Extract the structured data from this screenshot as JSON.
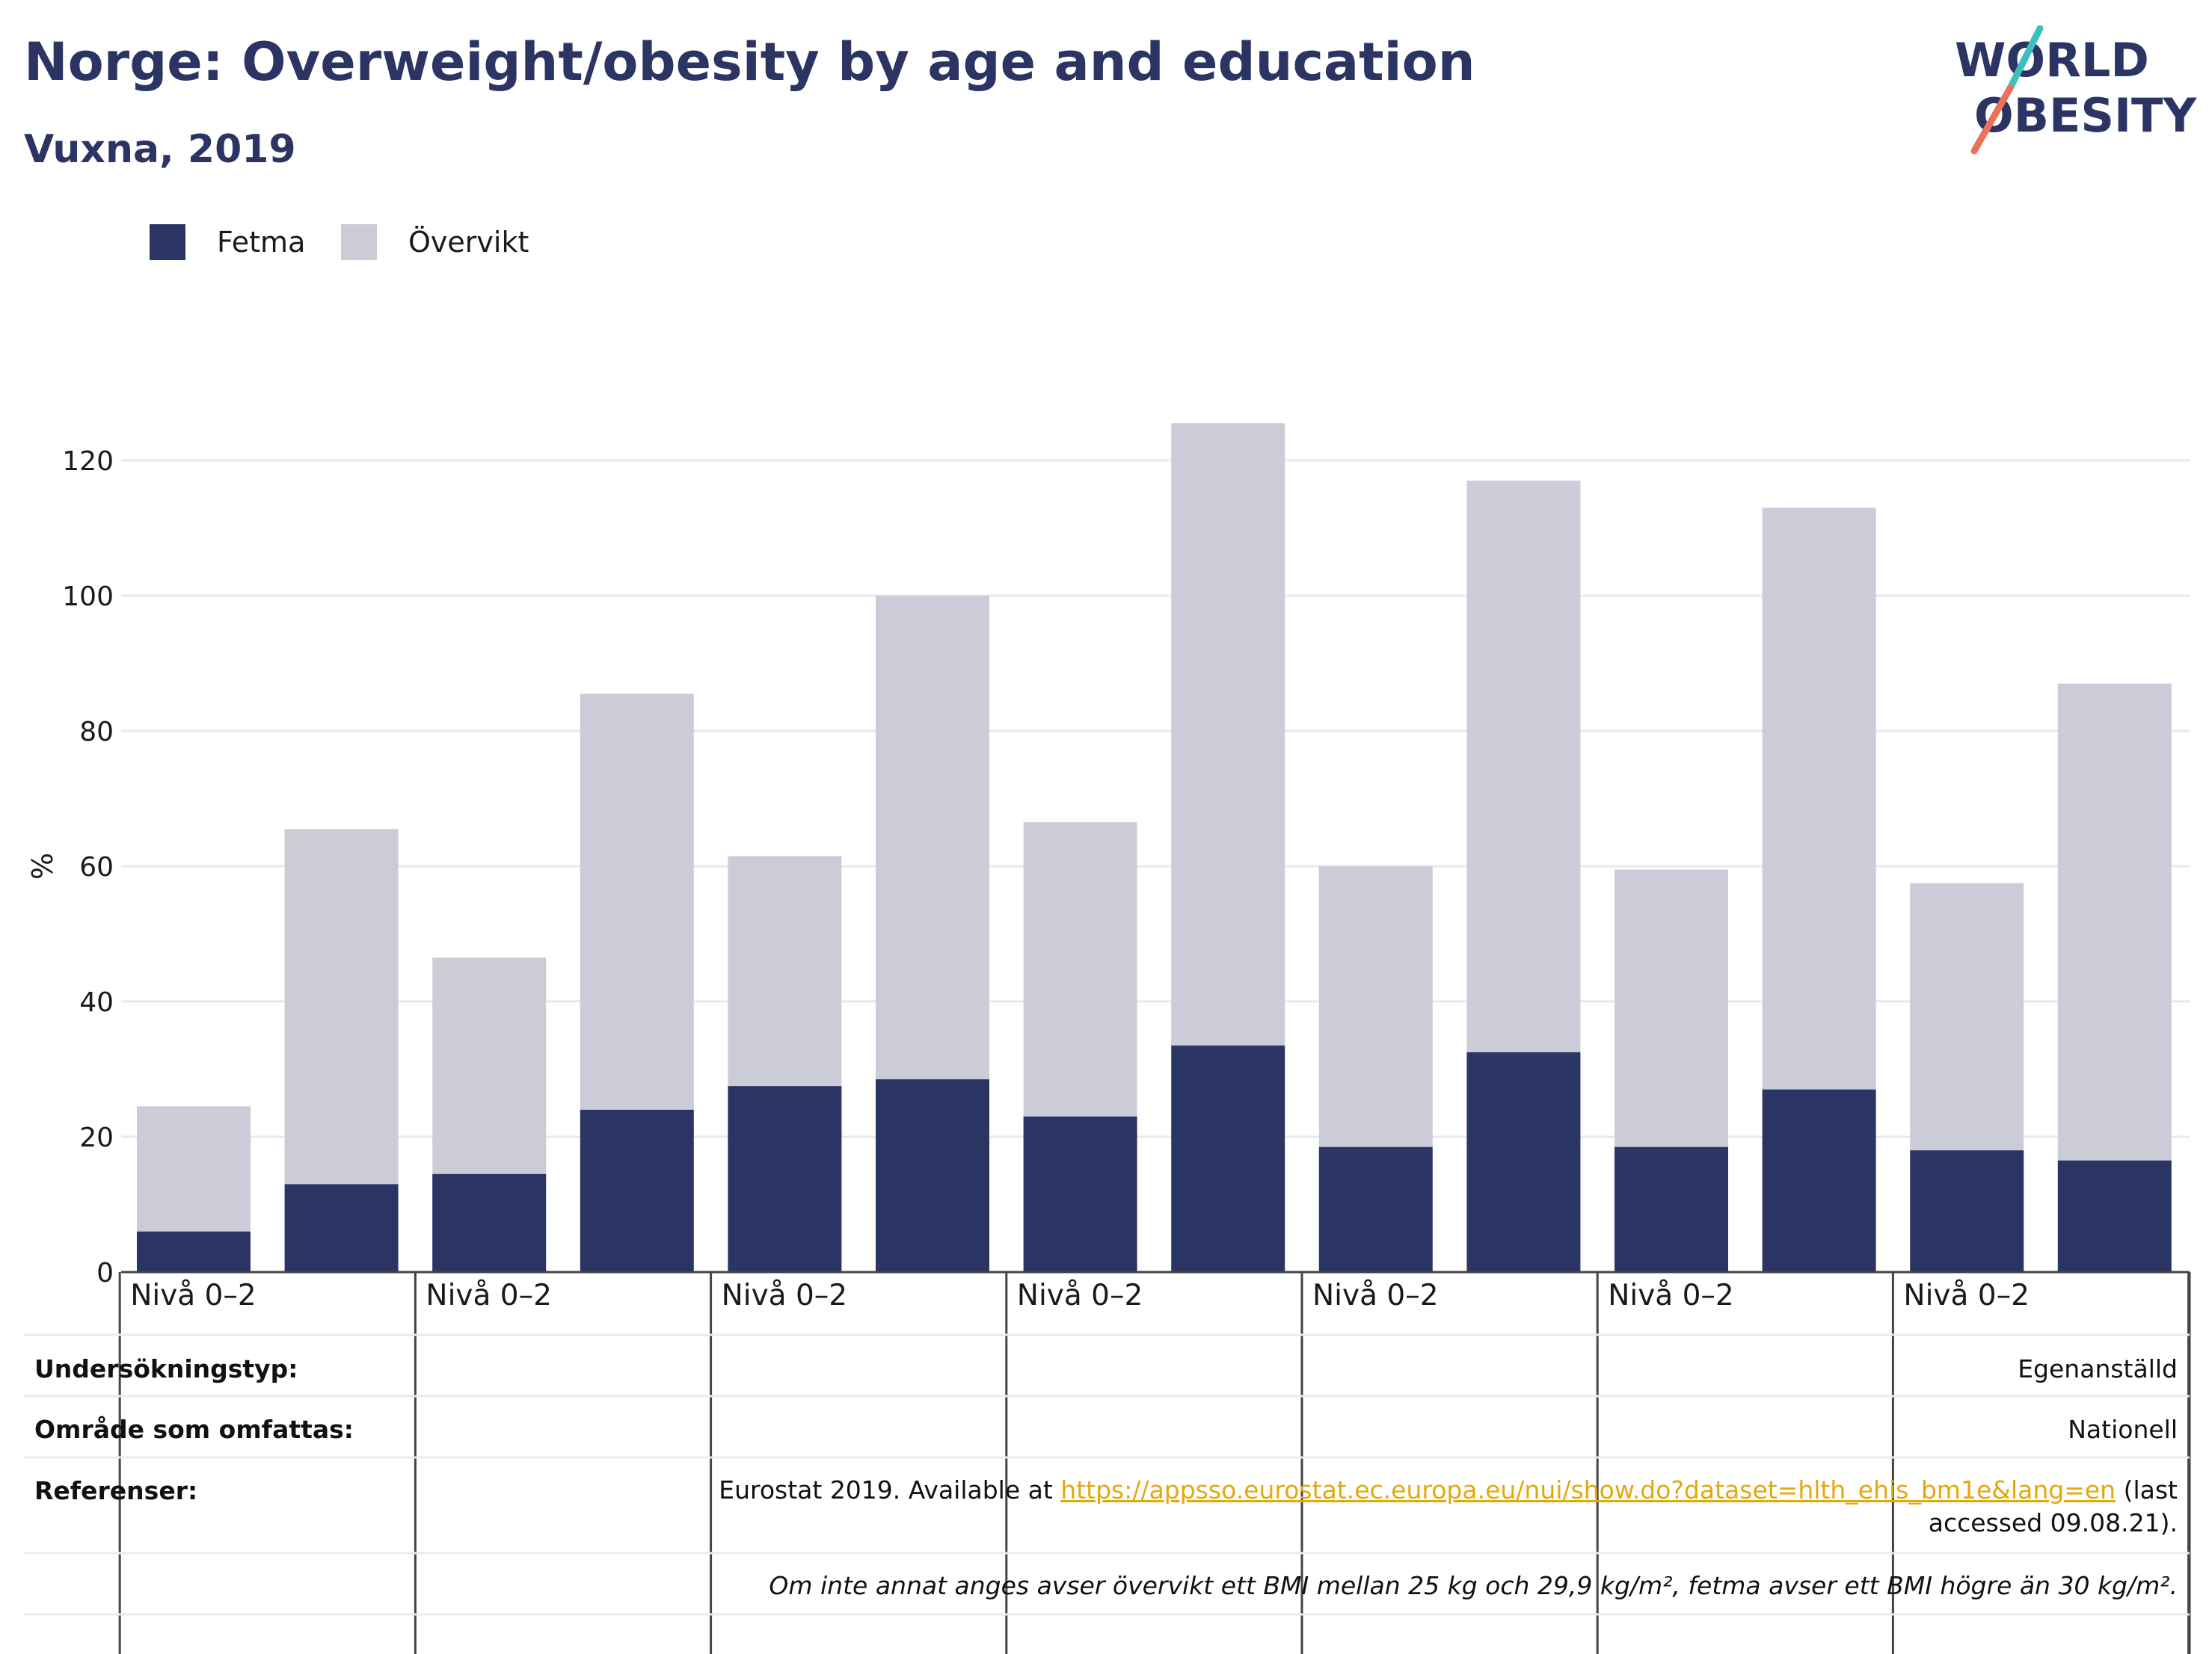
{
  "header": {
    "title": "Norge: Overweight/obesity by age and education",
    "subtitle": "Vuxna, 2019"
  },
  "logo": {
    "line1": "WORLD",
    "line2": "OBESITY"
  },
  "colors": {
    "fetma": "#2b3563",
    "overvikt": "#cbccd8",
    "text": "#2b3462",
    "link": "#e3a90b",
    "logo_teal": "#3dbfbf",
    "logo_coral": "#e8735a"
  },
  "chart_data": {
    "type": "bar",
    "stacked": true,
    "ylabel": "%",
    "ylim": [
      0,
      130
    ],
    "yticks": [
      0,
      20,
      40,
      60,
      80,
      100,
      120
    ],
    "grid": true,
    "legend_position": "top-left",
    "categories": [
      "",
      "",
      "",
      "",
      "",
      "",
      "",
      "",
      "",
      "",
      "",
      "",
      "",
      ""
    ],
    "group_labels": [
      "Nivå 0–2",
      "Nivå 0–2",
      "Nivå 0–2",
      "Nivå 0–2",
      "Nivå 0–2",
      "Nivå 0–2",
      "Nivå 0–2"
    ],
    "series": [
      {
        "name": "Fetma",
        "values": [
          6,
          13,
          14.5,
          24,
          27.5,
          28.5,
          23,
          33.5,
          18.5,
          32.5,
          18.5,
          27,
          18,
          16.5
        ]
      },
      {
        "name": "Övervikt",
        "values": [
          18.5,
          52.5,
          32,
          61.5,
          34,
          71.5,
          43.5,
          92,
          41.5,
          84.5,
          41,
          86,
          39.5,
          70.5
        ]
      }
    ]
  },
  "info": {
    "survey_type_label": "Undersökningstyp:",
    "survey_type_value": "Egenanställd",
    "coverage_label": "Område som omfattas:",
    "coverage_value": "Nationell",
    "references_label": "Referenser:",
    "references_prefix": "Eurostat 2019. Available at ",
    "references_link": "https://appsso.eurostat.ec.europa.eu/nui/show.do?dataset=hlth_ehis_bm1e&lang=en",
    "references_suffix": " (last accessed 09.08.21).",
    "note": "Om inte annat anges avser övervikt ett BMI mellan 25 kg och 29,9 kg/m², fetma avser ett BMI högre än 30 kg/m²."
  }
}
